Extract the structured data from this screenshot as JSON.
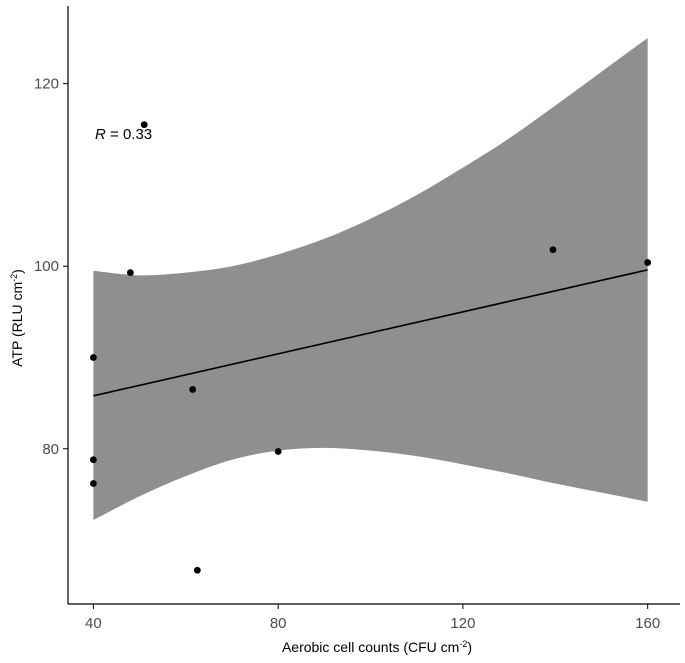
{
  "chart_data": {
    "type": "scatter",
    "xlabel": "Aerobic cell counts (CFU cm",
    "xlabel_sup": "-2",
    "xlabel_close": ")",
    "ylabel": "ATP (RLU cm",
    "ylabel_sup": "-2",
    "ylabel_close": ")",
    "xlim": [
      34.5,
      167
    ],
    "ylim": [
      63,
      128.5
    ],
    "x_ticks": [
      40,
      80,
      120,
      160
    ],
    "y_ticks": [
      80,
      100,
      120
    ],
    "x_tick_labels": [
      "40",
      "80",
      "120",
      "160"
    ],
    "y_tick_labels": [
      "80",
      "100",
      "120"
    ],
    "grid": false,
    "annotation": {
      "letter": "R",
      "rest": " = 0.33"
    },
    "points": [
      {
        "x": 40,
        "y": 90
      },
      {
        "x": 40,
        "y": 78.8
      },
      {
        "x": 40,
        "y": 76.2
      },
      {
        "x": 48,
        "y": 99.3
      },
      {
        "x": 51,
        "y": 115.5
      },
      {
        "x": 61.5,
        "y": 86.5
      },
      {
        "x": 62.5,
        "y": 66.7
      },
      {
        "x": 80,
        "y": 79.7
      },
      {
        "x": 139.5,
        "y": 101.8
      },
      {
        "x": 160,
        "y": 100.4
      }
    ],
    "regression": {
      "x_start": 40,
      "x_end": 160,
      "y_start": 85.8,
      "y_end": 99.6
    },
    "confidence_band": {
      "x": [
        40,
        50,
        60,
        70,
        80,
        90,
        100,
        110,
        120,
        130,
        140,
        150,
        160
      ],
      "upper": [
        99.5,
        99.0,
        99.3,
        100.0,
        101.3,
        103.0,
        105.2,
        107.8,
        110.8,
        114.0,
        117.6,
        121.3,
        125.0
      ],
      "lower": [
        72.2,
        74.8,
        77.0,
        78.8,
        79.8,
        80.1,
        79.8,
        79.2,
        78.3,
        77.3,
        76.2,
        75.2,
        74.2
      ]
    },
    "colors": {
      "band": "#8f8f8f",
      "line": "#000000",
      "points": "#000000",
      "axis": "#000000",
      "tick_label": "#4d4d4d",
      "axis_title": "#000000"
    }
  }
}
